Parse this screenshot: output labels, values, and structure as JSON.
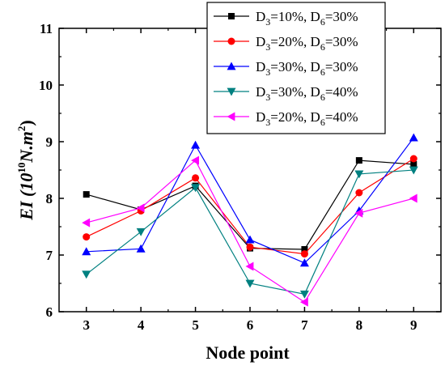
{
  "chart_data": {
    "type": "line",
    "x": [
      3,
      4,
      5,
      6,
      7,
      8,
      9
    ],
    "xlabel": "Node point",
    "ylabel": {
      "prefix": "EI (10",
      "exp": "10",
      "mid": "N.m",
      "exp2": "2",
      "suffix": ")"
    },
    "xlim": [
      2.5,
      9.5
    ],
    "ylim": [
      6,
      11
    ],
    "xticks": [
      "3",
      "4",
      "5",
      "6",
      "7",
      "8",
      "9"
    ],
    "yticks": [
      "6",
      "7",
      "8",
      "9",
      "10",
      "11"
    ],
    "grid": false,
    "legend_position": "top-right",
    "series": [
      {
        "name": "D3=10%, D6=30%",
        "legend": {
          "a": "D",
          "as": "3",
          "b": "=10%, D",
          "bs": "6",
          "c": "=30%"
        },
        "color": "#000000",
        "marker": "square",
        "values": [
          8.07,
          7.8,
          8.22,
          7.12,
          7.1,
          8.67,
          8.6
        ]
      },
      {
        "name": "D3=20%, D6=30%",
        "legend": {
          "a": "D",
          "as": "3",
          "b": "=20%, D",
          "bs": "6",
          "c": "=30%"
        },
        "color": "#ff0000",
        "marker": "circle",
        "values": [
          7.32,
          7.78,
          8.36,
          7.14,
          7.02,
          8.1,
          8.7
        ]
      },
      {
        "name": "D3=30%, D6=30%",
        "legend": {
          "a": "D",
          "as": "3",
          "b": "=30%, D",
          "bs": "6",
          "c": "=30%"
        },
        "color": "#0000ff",
        "marker": "triangle-up",
        "values": [
          7.06,
          7.11,
          8.94,
          7.27,
          6.86,
          7.78,
          9.07
        ]
      },
      {
        "name": "D3=30%, D6=40%",
        "legend": {
          "a": "D",
          "as": "3",
          "b": "=30%, D",
          "bs": "6",
          "c": "=40%"
        },
        "color": "#008080",
        "marker": "triangle-down",
        "values": [
          6.66,
          7.41,
          8.19,
          6.5,
          6.31,
          8.43,
          8.5
        ]
      },
      {
        "name": "D3=20%, D6=40%",
        "legend": {
          "a": "D",
          "as": "3",
          "b": "=20%, D",
          "bs": "6",
          "c": "=40%"
        },
        "color": "#ff00ff",
        "marker": "triangle-left",
        "values": [
          7.57,
          7.83,
          8.67,
          6.8,
          6.17,
          7.74,
          8.0
        ]
      }
    ]
  }
}
